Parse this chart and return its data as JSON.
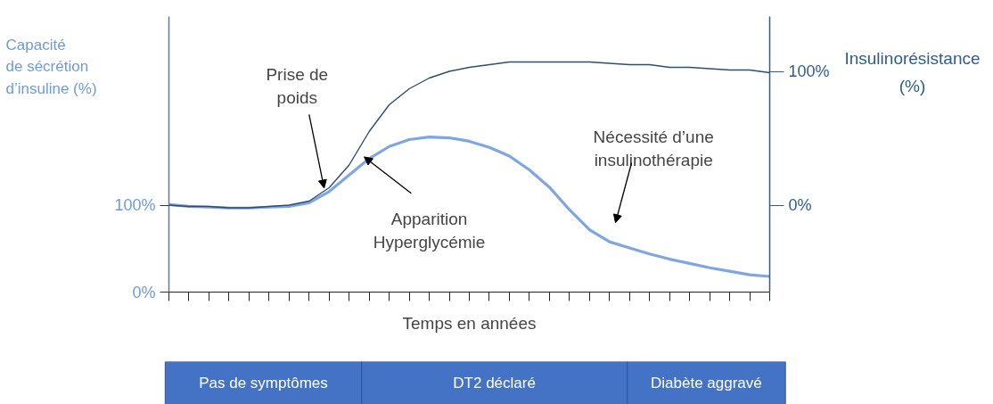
{
  "chart_data": {
    "type": "line",
    "categories": [
      null,
      null,
      null,
      null,
      null,
      null,
      null,
      null,
      null,
      null,
      null,
      null,
      null,
      null,
      null,
      null,
      null,
      null,
      null,
      null,
      null,
      null,
      null,
      null,
      null,
      null,
      null,
      null,
      null,
      null,
      null
    ],
    "xlabel": "Temps en années",
    "ylabel": "Capacité\nde sécrétion\nd’insuline (%)",
    "y2label": "Insulinorésistance\n(%)",
    "ylim": [
      0,
      318
    ],
    "yticks": [
      {
        "value": 0,
        "label": "0%"
      },
      {
        "value": 100,
        "label": "100%"
      }
    ],
    "y2lim": [
      -65,
      141
    ],
    "y2ticks": [
      {
        "value": 0,
        "label": "0%"
      },
      {
        "value": 100,
        "label": "100%"
      }
    ],
    "series": [
      {
        "color": "#7fa6e0",
        "values": [
          101,
          99,
          98,
          97,
          97,
          98,
          99,
          103,
          116,
          135,
          154,
          168,
          176,
          179,
          178,
          174,
          167,
          157,
          141,
          121,
          95,
          72,
          58,
          51,
          44,
          38,
          33,
          28,
          24,
          20,
          18
        ]
      },
      {
        "color": "#2e4e6e",
        "axis": "y2",
        "values": [
          0,
          -1,
          -1,
          -2,
          -2,
          -1,
          0,
          3,
          13,
          30,
          55,
          75,
          87,
          95,
          100,
          103,
          105,
          107,
          107,
          107,
          107,
          107,
          106,
          105,
          105,
          103,
          103,
          102,
          101,
          101,
          99
        ]
      }
    ],
    "annotations": [
      "Prise de\npoids",
      "Apparition\nHyperglycémie",
      "Nécessité d’une\ninsulinothérapie",
      "Pas de symptômes",
      "DT2 déclaré",
      "Diabète aggravé"
    ]
  }
}
